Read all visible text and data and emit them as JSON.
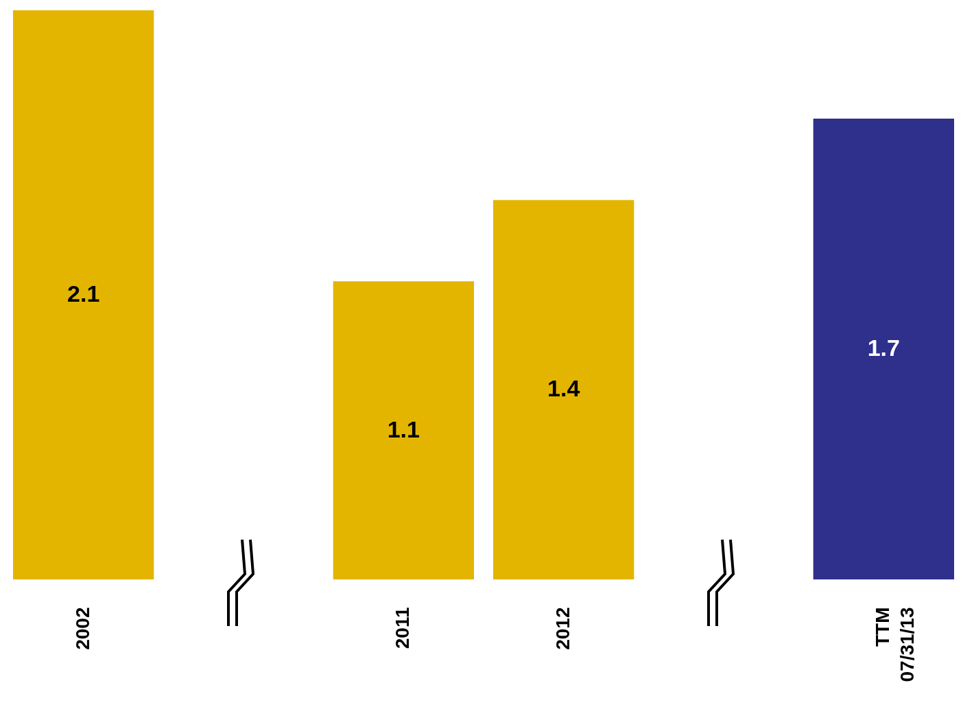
{
  "chart_data": {
    "type": "bar",
    "categories": [
      "2002",
      null,
      "2011",
      "2012",
      null,
      "TTM\n07/31/13"
    ],
    "values": [
      2.1,
      null,
      1.1,
      1.4,
      null,
      1.7
    ],
    "colors": [
      "#e3b500",
      "#e3b500",
      "#e3b500",
      "#e3b500",
      "#e3b500",
      "#2f2f8c"
    ],
    "tick_labels": "x",
    "data_labels": true
  }
}
